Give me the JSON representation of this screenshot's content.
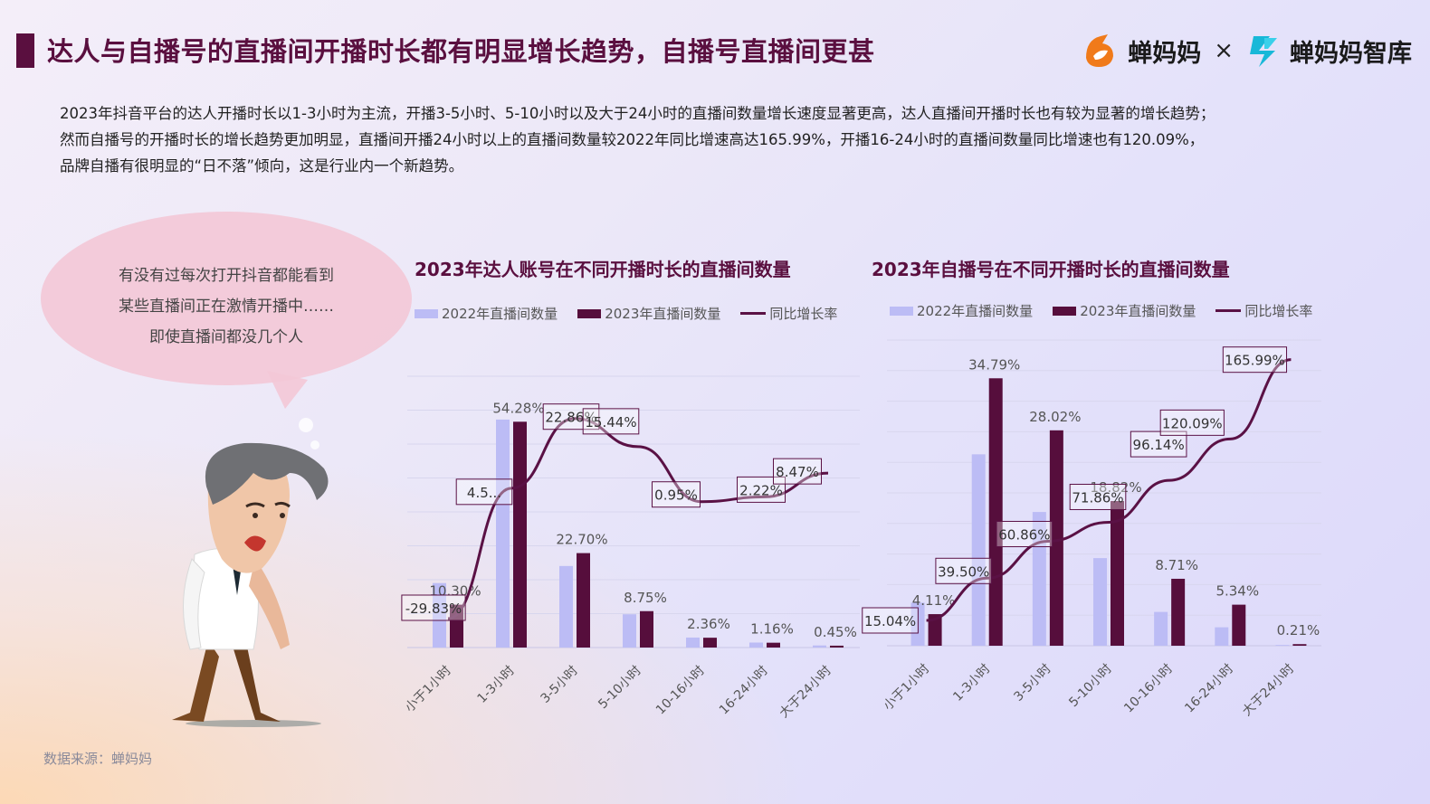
{
  "header": {
    "title": "达人与自播号的直播间开播时长都有明显增长趋势，自播号直播间更甚",
    "logo_primary": "蝉妈妈",
    "times_sign": "×",
    "logo_secondary": "蝉妈妈智库"
  },
  "description": [
    "2023年抖音平台的达人开播时长以1-3小时为主流，开播3-5小时、5-10小时以及大于24小时的直播间数量增长速度显著更高，达人直播间开播时长也有较为显著的增长趋势；",
    "然而自播号的开播时长的增长趋势更加明显，直播间开播24小时以上的直播间数量较2022年同比增速高达165.99%，开播16-24小时的直播间数量同比增速也有120.09%，",
    "品牌自播有很明显的“日不落”倾向，这是行业内一个新趋势。"
  ],
  "bubble": {
    "lines": [
      "有没有过每次打开抖音都能看到",
      "某些直播间正在激情开播中……",
      "即使直播间都没几个人"
    ]
  },
  "colors": {
    "bar2022": "#bcbcf5",
    "bar2023": "#560e3c",
    "line": "#5a1145",
    "title": "#5a0f3f"
  },
  "source": "数据来源：蝉妈妈",
  "chart_data": [
    {
      "type": "bar",
      "title": "2023年达人账号在不同开播时长的直播间数量",
      "legend": [
        "2022年直播间数量",
        "2023年直播间数量",
        "同比增长率"
      ],
      "categories": [
        "小于1小时",
        "1-3小时",
        "3-5小时",
        "5-10小时",
        "10-16小时",
        "16-24小时",
        "大于24小时"
      ],
      "series": [
        {
          "name": "2022年直播间数量",
          "values": [
            15.5,
            54.8,
            19.6,
            8.0,
            2.4,
            1.2,
            0.5
          ]
        },
        {
          "name": "2023年直播间数量",
          "values": [
            10.3,
            54.28,
            22.7,
            8.75,
            2.36,
            1.16,
            0.45
          ],
          "labels": [
            "10.30%",
            "54.28%",
            "22.70%",
            "8.75%",
            "2.36%",
            "1.16%",
            "0.45%"
          ]
        },
        {
          "name": "同比增长率",
          "type": "line",
          "values": [
            -29.83,
            4.5,
            22.86,
            15.44,
            0.95,
            2.22,
            8.47
          ],
          "labels": [
            "-29.83%",
            "4.5...",
            "22.86%",
            "15.44%",
            "0.95%",
            "2.22%",
            "8.47%"
          ]
        }
      ]
    },
    {
      "type": "bar",
      "title": "2023年自播号在不同开播时长的直播间数量",
      "legend": [
        "2022年直播间数量",
        "2023年直播间数量",
        "同比增长率"
      ],
      "categories": [
        "小于1小时",
        "1-3小时",
        "3-5小时",
        "5-10小时",
        "10-16小时",
        "16-24小时",
        "大于24小时"
      ],
      "series": [
        {
          "name": "2022年直播间数量",
          "values": [
            5.6,
            24.9,
            17.4,
            11.4,
            4.4,
            2.4,
            0.1
          ]
        },
        {
          "name": "2023年直播间数量",
          "values": [
            4.11,
            34.79,
            28.02,
            18.82,
            8.71,
            5.34,
            0.21
          ],
          "labels": [
            "4.11%",
            "34.79%",
            "28.02%",
            "18.82%",
            "8.71%",
            "5.34%",
            "0.21%"
          ]
        },
        {
          "name": "同比增长率",
          "type": "line",
          "values": [
            15.04,
            39.5,
            60.86,
            71.86,
            96.14,
            120.09,
            165.99
          ],
          "labels": [
            "15.04%",
            "39.50%",
            "60.86%",
            "71.86%",
            "96.14%",
            "120.09%",
            "165.99%"
          ]
        }
      ]
    }
  ]
}
